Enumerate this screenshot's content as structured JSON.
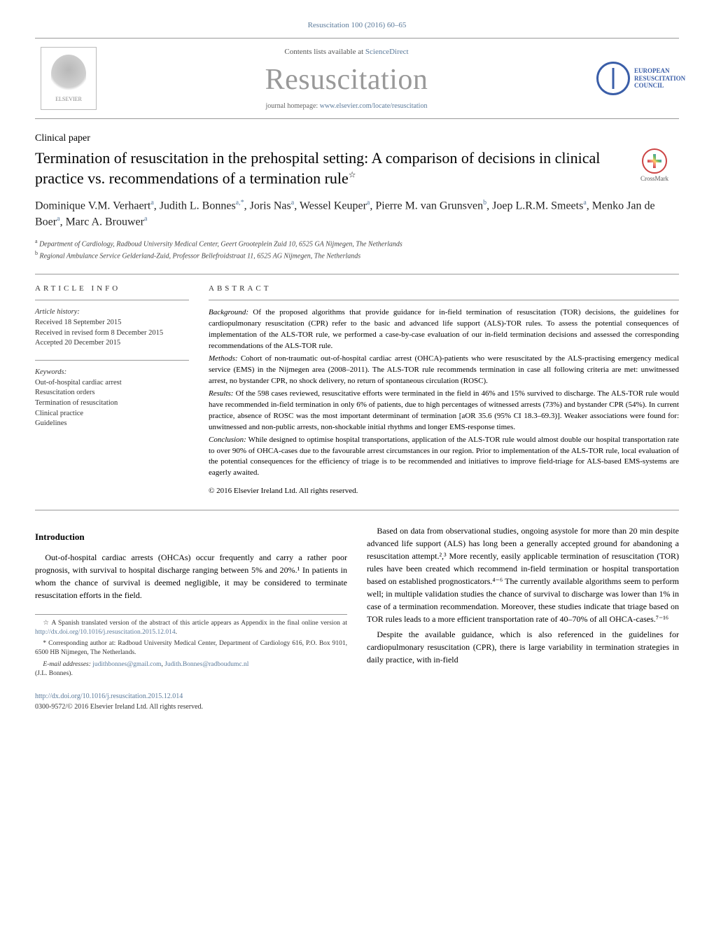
{
  "journal_ref": "Resuscitation 100 (2016) 60–65",
  "header": {
    "contents_prefix": "Contents lists available at ",
    "contents_link": "ScienceDirect",
    "journal_name": "Resuscitation",
    "homepage_prefix": "journal homepage: ",
    "homepage_url": "www.elsevier.com/locate/resuscitation",
    "elsevier_label": "ELSEVIER",
    "erc_line1": "EUROPEAN",
    "erc_line2": "RESUSCITATION",
    "erc_line3": "COUNCIL"
  },
  "article_type": "Clinical paper",
  "title": "Termination of resuscitation in the prehospital setting: A comparison of decisions in clinical practice vs. recommendations of a termination rule",
  "title_footnote_symbol": "☆",
  "crossmark_label": "CrossMark",
  "authors_html": "Dominique V.M. Verhaert|a|, Judith L. Bonnes|a,*|, Joris Nas|a|, Wessel Keuper|a|, Pierre M. van Grunsven|b|, Joep L.R.M. Smeets|a|, Menko Jan de Boer|a|, Marc A. Brouwer|a|",
  "affiliations": {
    "a": "Department of Cardiology, Radboud University Medical Center, Geert Grooteplein Zuid 10, 6525 GA Nijmegen, The Netherlands",
    "b": "Regional Ambulance Service Gelderland-Zuid, Professor Bellefroidstraat 11, 6525 AG Nijmegen, The Netherlands"
  },
  "info_label": "ARTICLE INFO",
  "abstract_label": "ABSTRACT",
  "history": {
    "title": "Article history:",
    "received": "Received 18 September 2015",
    "revised": "Received in revised form 8 December 2015",
    "accepted": "Accepted 20 December 2015"
  },
  "keywords": {
    "title": "Keywords:",
    "items": [
      "Out-of-hospital cardiac arrest",
      "Resuscitation orders",
      "Termination of resuscitation",
      "Clinical practice",
      "Guidelines"
    ]
  },
  "abstract": {
    "background_label": "Background:",
    "background": "Of the proposed algorithms that provide guidance for in-field termination of resuscitation (TOR) decisions, the guidelines for cardiopulmonary resuscitation (CPR) refer to the basic and advanced life support (ALS)-TOR rules. To assess the potential consequences of implementation of the ALS-TOR rule, we performed a case-by-case evaluation of our in-field termination decisions and assessed the corresponding recommendations of the ALS-TOR rule.",
    "methods_label": "Methods:",
    "methods": "Cohort of non-traumatic out-of-hospital cardiac arrest (OHCA)-patients who were resuscitated by the ALS-practising emergency medical service (EMS) in the Nijmegen area (2008–2011). The ALS-TOR rule recommends termination in case all following criteria are met: unwitnessed arrest, no bystander CPR, no shock delivery, no return of spontaneous circulation (ROSC).",
    "results_label": "Results:",
    "results": "Of the 598 cases reviewed, resuscitative efforts were terminated in the field in 46% and 15% survived to discharge. The ALS-TOR rule would have recommended in-field termination in only 6% of patients, due to high percentages of witnessed arrests (73%) and bystander CPR (54%). In current practice, absence of ROSC was the most important determinant of termination [aOR 35.6 (95% CI 18.3–69.3)]. Weaker associations were found for: unwitnessed and non-public arrests, non-shockable initial rhythms and longer EMS-response times.",
    "conclusion_label": "Conclusion:",
    "conclusion": "While designed to optimise hospital transportations, application of the ALS-TOR rule would almost double our hospital transportation rate to over 90% of OHCA-cases due to the favourable arrest circumstances in our region. Prior to implementation of the ALS-TOR rule, local evaluation of the potential consequences for the efficiency of triage is to be recommended and initiatives to improve field-triage for ALS-based EMS-systems are eagerly awaited."
  },
  "copyright": "© 2016 Elsevier Ireland Ltd. All rights reserved.",
  "body": {
    "intro_heading": "Introduction",
    "p1": "Out-of-hospital cardiac arrests (OHCAs) occur frequently and carry a rather poor prognosis, with survival to hospital discharge ranging between 5% and 20%.¹ In patients in whom the chance of survival is deemed negligible, it may be considered to terminate resuscitation efforts in the field.",
    "p2": "Based on data from observational studies, ongoing asystole for more than 20 min despite advanced life support (ALS) has long been a generally accepted ground for abandoning a resuscitation attempt.²,³ More recently, easily applicable termination of resuscitation (TOR) rules have been created which recommend in-field termination or hospital transportation based on established prognosticators.⁴⁻⁶ The currently available algorithms seem to perform well; in multiple validation studies the chance of survival to discharge was lower than 1% in case of a termination recommendation. Moreover, these studies indicate that triage based on TOR rules leads to a more efficient transportation rate of 40–70% of all OHCA-cases.⁷⁻¹⁶",
    "p3": "Despite the available guidance, which is also referenced in the guidelines for cardiopulmonary resuscitation (CPR), there is large variability in termination strategies in daily practice, with in-field"
  },
  "footnotes": {
    "star": "A Spanish translated version of the abstract of this article appears as Appendix in the final online version at ",
    "star_link": "http://dx.doi.org/10.1016/j.resuscitation.2015.12.014",
    "corr": "Corresponding author at: Radboud University Medical Center, Department of Cardiology 616, P.O. Box 9101, 6500 HB Nijmegen, The Netherlands.",
    "email_label": "E-mail addresses: ",
    "email1": "judithbonnes@gmail.com",
    "email2": "Judith.Bonnes@radboudumc.nl",
    "email_suffix": "(J.L. Bonnes)."
  },
  "doi": {
    "link": "http://dx.doi.org/10.1016/j.resuscitation.2015.12.014",
    "issn": "0300-9572/© 2016 Elsevier Ireland Ltd. All rights reserved."
  },
  "colors": {
    "link": "#5b7a9a",
    "journal_gray": "#999999",
    "erc_blue": "#3a5ea8",
    "text": "#000000",
    "rule": "#999999"
  },
  "typography": {
    "body_pt": 12,
    "title_pt": 22,
    "journal_pt": 42,
    "abstract_pt": 11,
    "footnote_pt": 9.5
  }
}
